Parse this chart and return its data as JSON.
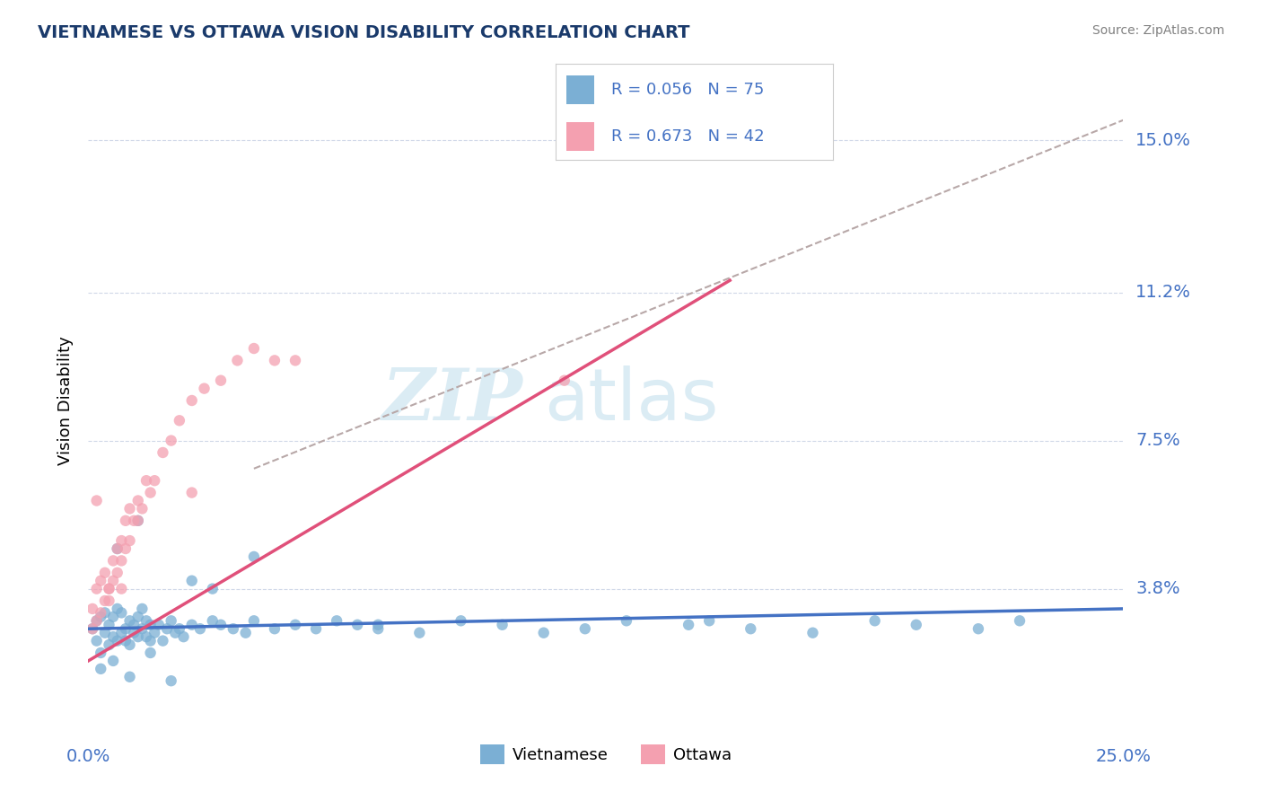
{
  "title": "VIETNAMESE VS OTTAWA VISION DISABILITY CORRELATION CHART",
  "source": "Source: ZipAtlas.com",
  "ylabel_label": "Vision Disability",
  "r_blue": 0.056,
  "n_blue": 75,
  "r_pink": 0.673,
  "n_pink": 42,
  "legend_label_blue": "Vietnamese",
  "legend_label_pink": "Ottawa",
  "title_color": "#1a3a6b",
  "axis_label_color": "#4472c4",
  "watermark_color": "#cde4f0",
  "bg_color": "#ffffff",
  "plot_bg_color": "#ffffff",
  "blue_scatter_color": "#7bafd4",
  "pink_scatter_color": "#f4a0b0",
  "blue_line_color": "#4472c4",
  "pink_line_color": "#e0507a",
  "dashed_line_color": "#b8a8a8",
  "grid_color": "#d0d8e8",
  "xmin": 0.0,
  "xmax": 0.25,
  "ymin": 0.005,
  "ymax": 0.165,
  "ytick_vals": [
    0.038,
    0.075,
    0.112,
    0.15
  ],
  "ytick_labels": [
    "3.8%",
    "7.5%",
    "11.2%",
    "15.0%"
  ],
  "xtick_vals": [
    0.0,
    0.25
  ],
  "xtick_labels": [
    "0.0%",
    "25.0%"
  ],
  "blue_line_x": [
    0.0,
    0.25
  ],
  "blue_line_y": [
    0.028,
    0.033
  ],
  "pink_line_x": [
    0.0,
    0.155
  ],
  "pink_line_y": [
    0.02,
    0.115
  ],
  "dash_line_x": [
    0.04,
    0.25
  ],
  "dash_line_y": [
    0.068,
    0.155
  ],
  "blue_x": [
    0.001,
    0.002,
    0.002,
    0.003,
    0.003,
    0.004,
    0.004,
    0.005,
    0.005,
    0.006,
    0.006,
    0.007,
    0.007,
    0.008,
    0.008,
    0.009,
    0.009,
    0.01,
    0.01,
    0.011,
    0.011,
    0.012,
    0.012,
    0.013,
    0.013,
    0.014,
    0.014,
    0.015,
    0.015,
    0.016,
    0.017,
    0.018,
    0.019,
    0.02,
    0.021,
    0.022,
    0.023,
    0.025,
    0.027,
    0.03,
    0.032,
    0.035,
    0.038,
    0.04,
    0.045,
    0.05,
    0.055,
    0.06,
    0.065,
    0.07,
    0.08,
    0.09,
    0.1,
    0.11,
    0.12,
    0.13,
    0.145,
    0.16,
    0.175,
    0.19,
    0.2,
    0.215,
    0.225,
    0.003,
    0.006,
    0.01,
    0.015,
    0.02,
    0.025,
    0.03,
    0.007,
    0.012,
    0.04,
    0.07,
    0.15
  ],
  "blue_y": [
    0.028,
    0.025,
    0.03,
    0.022,
    0.031,
    0.027,
    0.032,
    0.024,
    0.029,
    0.026,
    0.031,
    0.025,
    0.033,
    0.027,
    0.032,
    0.028,
    0.025,
    0.03,
    0.024,
    0.029,
    0.027,
    0.031,
    0.026,
    0.028,
    0.033,
    0.026,
    0.03,
    0.029,
    0.025,
    0.027,
    0.029,
    0.025,
    0.028,
    0.03,
    0.027,
    0.028,
    0.026,
    0.029,
    0.028,
    0.03,
    0.029,
    0.028,
    0.027,
    0.03,
    0.028,
    0.029,
    0.028,
    0.03,
    0.029,
    0.028,
    0.027,
    0.03,
    0.029,
    0.027,
    0.028,
    0.03,
    0.029,
    0.028,
    0.027,
    0.03,
    0.029,
    0.028,
    0.03,
    0.018,
    0.02,
    0.016,
    0.022,
    0.015,
    0.04,
    0.038,
    0.048,
    0.055,
    0.046,
    0.029,
    0.03
  ],
  "pink_x": [
    0.001,
    0.001,
    0.002,
    0.002,
    0.003,
    0.003,
    0.004,
    0.004,
    0.005,
    0.005,
    0.006,
    0.006,
    0.007,
    0.007,
    0.008,
    0.008,
    0.009,
    0.009,
    0.01,
    0.01,
    0.011,
    0.012,
    0.013,
    0.014,
    0.015,
    0.016,
    0.018,
    0.02,
    0.022,
    0.025,
    0.028,
    0.032,
    0.036,
    0.04,
    0.045,
    0.05,
    0.002,
    0.005,
    0.008,
    0.012,
    0.025,
    0.115
  ],
  "pink_y": [
    0.028,
    0.033,
    0.03,
    0.038,
    0.032,
    0.04,
    0.035,
    0.042,
    0.038,
    0.038,
    0.04,
    0.045,
    0.042,
    0.048,
    0.045,
    0.05,
    0.048,
    0.055,
    0.05,
    0.058,
    0.055,
    0.06,
    0.058,
    0.065,
    0.062,
    0.065,
    0.072,
    0.075,
    0.08,
    0.085,
    0.088,
    0.09,
    0.095,
    0.098,
    0.095,
    0.095,
    0.06,
    0.035,
    0.038,
    0.055,
    0.062,
    0.09
  ]
}
